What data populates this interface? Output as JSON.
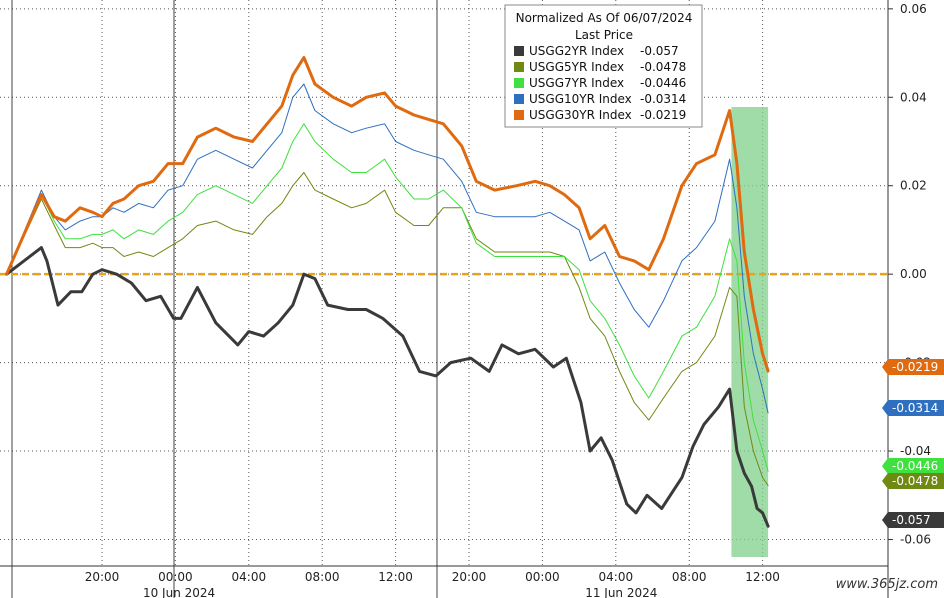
{
  "chart_data": {
    "type": "line",
    "legend": {
      "title": "Normalized As Of 06/07/2024",
      "subtitle": "Last Price",
      "placement": "top-center"
    },
    "ylim": [
      -0.066,
      0.062
    ],
    "y_ticks": [
      "0.06",
      "0.04",
      "0.02",
      "0.00",
      "-0.02",
      "-0.04",
      "-0.06"
    ],
    "y_tick_values": [
      0.06,
      0.04,
      0.02,
      0.0,
      -0.02,
      -0.04,
      -0.06
    ],
    "x_ticks": [
      "20:00",
      "00:00",
      "04:00",
      "08:00",
      "12:00",
      "20:00",
      "00:00",
      "04:00",
      "08:00",
      "12:00"
    ],
    "x_tick_hours": [
      0,
      4,
      8,
      12,
      16,
      20,
      24,
      28,
      32,
      36
    ],
    "x_hour_offset_label": "x values are hours after the 20:00 tick on 9 Jun 2024",
    "dates": [
      {
        "label": "10 Jun 2024",
        "center_hour": 4.2
      },
      {
        "label": "11 Jun 2024",
        "center_hour": 28.3
      }
    ],
    "reference_line": {
      "y": 0.0,
      "color": "#e8a317",
      "style": "dashed"
    },
    "highlight_band": {
      "x_start": 34.3,
      "x_end": 36.3,
      "color": "#7fd08a"
    },
    "series": [
      {
        "name": "USGG2YR Index",
        "last": "-0.057",
        "color": "#3a3a3a",
        "width": 3,
        "x": [
          -5.2,
          -3.3,
          -3.0,
          -2.4,
          -1.7,
          -1.1,
          -0.5,
          0.0,
          0.8,
          1.6,
          2.4,
          3.2,
          3.9,
          4.3,
          5.2,
          6.2,
          7.4,
          8.0,
          8.8,
          9.6,
          10.4,
          11.0,
          11.6,
          12.3,
          13.4,
          14.4,
          15.3,
          16.4,
          17.3,
          18.2,
          19.0,
          20.1,
          21.1,
          21.8,
          22.7,
          23.6,
          24.6,
          25.3,
          26.1,
          26.6,
          27.2,
          27.8,
          28.6,
          29.1,
          29.7,
          30.5,
          31.6,
          32.2,
          32.8,
          33.6,
          34.2,
          34.6,
          35.0,
          35.4,
          35.7,
          36.0,
          36.3
        ],
        "y": [
          0.0,
          0.006,
          0.003,
          -0.007,
          -0.004,
          -0.004,
          0.0,
          0.001,
          0.0,
          -0.002,
          -0.006,
          -0.005,
          -0.01,
          -0.01,
          -0.003,
          -0.011,
          -0.016,
          -0.013,
          -0.014,
          -0.011,
          -0.007,
          0.0,
          -0.001,
          -0.007,
          -0.008,
          -0.008,
          -0.01,
          -0.014,
          -0.022,
          -0.023,
          -0.02,
          -0.019,
          -0.022,
          -0.016,
          -0.018,
          -0.017,
          -0.021,
          -0.019,
          -0.029,
          -0.04,
          -0.037,
          -0.042,
          -0.052,
          -0.054,
          -0.05,
          -0.053,
          -0.046,
          -0.039,
          -0.034,
          -0.03,
          -0.026,
          -0.04,
          -0.045,
          -0.048,
          -0.053,
          -0.054,
          -0.057
        ]
      },
      {
        "name": "USGG5YR Index",
        "last": "-0.0478",
        "color": "#6f8a12",
        "width": 1,
        "x": [
          -5.2,
          -3.3,
          -2.6,
          -2.0,
          -1.2,
          -0.5,
          0.0,
          0.6,
          1.2,
          2.0,
          2.8,
          3.6,
          4.4,
          5.2,
          6.2,
          7.2,
          8.2,
          9.0,
          9.8,
          10.4,
          11.0,
          11.6,
          12.6,
          13.6,
          14.4,
          15.4,
          16.0,
          17.0,
          17.8,
          18.6,
          19.6,
          20.4,
          21.4,
          22.6,
          23.6,
          24.4,
          25.2,
          26.0,
          26.6,
          27.4,
          28.2,
          29.0,
          29.8,
          30.6,
          31.6,
          32.4,
          33.4,
          34.2,
          34.6,
          35.0,
          35.5,
          36.0,
          36.3
        ],
        "y": [
          0.0,
          0.017,
          0.011,
          0.006,
          0.006,
          0.007,
          0.006,
          0.006,
          0.004,
          0.005,
          0.004,
          0.006,
          0.008,
          0.011,
          0.012,
          0.01,
          0.009,
          0.013,
          0.016,
          0.02,
          0.023,
          0.019,
          0.017,
          0.015,
          0.016,
          0.019,
          0.014,
          0.011,
          0.011,
          0.015,
          0.015,
          0.008,
          0.005,
          0.005,
          0.005,
          0.005,
          0.004,
          -0.003,
          -0.01,
          -0.014,
          -0.022,
          -0.029,
          -0.033,
          -0.028,
          -0.022,
          -0.02,
          -0.014,
          -0.003,
          -0.005,
          -0.03,
          -0.04,
          -0.046,
          -0.0478
        ]
      },
      {
        "name": "USGG7YR Index",
        "last": "-0.0446",
        "color": "#3fe03f",
        "width": 1,
        "x": [
          -5.2,
          -3.3,
          -2.6,
          -2.0,
          -1.2,
          -0.5,
          0.0,
          0.6,
          1.2,
          2.0,
          2.8,
          3.6,
          4.4,
          5.2,
          6.2,
          7.2,
          8.2,
          9.0,
          9.8,
          10.4,
          11.0,
          11.6,
          12.6,
          13.6,
          14.4,
          15.4,
          16.0,
          17.0,
          17.8,
          18.6,
          19.6,
          20.4,
          21.4,
          22.6,
          23.6,
          24.4,
          25.2,
          26.0,
          26.6,
          27.4,
          28.2,
          29.0,
          29.8,
          30.6,
          31.6,
          32.4,
          33.4,
          34.2,
          34.6,
          35.0,
          35.5,
          36.0,
          36.3
        ],
        "y": [
          0.0,
          0.018,
          0.012,
          0.008,
          0.008,
          0.009,
          0.009,
          0.01,
          0.008,
          0.01,
          0.009,
          0.012,
          0.014,
          0.018,
          0.02,
          0.018,
          0.016,
          0.02,
          0.024,
          0.03,
          0.034,
          0.03,
          0.026,
          0.023,
          0.023,
          0.026,
          0.022,
          0.017,
          0.017,
          0.019,
          0.015,
          0.007,
          0.004,
          0.004,
          0.004,
          0.004,
          0.004,
          0.001,
          -0.006,
          -0.01,
          -0.016,
          -0.023,
          -0.028,
          -0.022,
          -0.014,
          -0.012,
          -0.005,
          0.008,
          0.003,
          -0.02,
          -0.033,
          -0.04,
          -0.0446
        ]
      },
      {
        "name": "USGG10YR Index",
        "last": "-0.0314",
        "color": "#2f6fc0",
        "width": 1,
        "x": [
          -5.2,
          -3.3,
          -2.6,
          -2.0,
          -1.2,
          -0.5,
          0.0,
          0.6,
          1.2,
          2.0,
          2.8,
          3.6,
          4.4,
          5.2,
          6.2,
          7.2,
          8.2,
          9.0,
          9.8,
          10.4,
          11.0,
          11.6,
          12.6,
          13.6,
          14.4,
          15.4,
          16.0,
          17.0,
          17.8,
          18.6,
          19.6,
          20.4,
          21.4,
          22.6,
          23.6,
          24.4,
          25.2,
          26.0,
          26.6,
          27.4,
          28.2,
          29.0,
          29.8,
          30.6,
          31.6,
          32.4,
          33.4,
          34.2,
          34.6,
          35.0,
          35.5,
          36.0,
          36.3
        ],
        "y": [
          0.0,
          0.019,
          0.013,
          0.01,
          0.012,
          0.013,
          0.013,
          0.015,
          0.014,
          0.016,
          0.015,
          0.019,
          0.02,
          0.026,
          0.028,
          0.026,
          0.024,
          0.028,
          0.032,
          0.04,
          0.043,
          0.037,
          0.034,
          0.032,
          0.033,
          0.034,
          0.03,
          0.028,
          0.027,
          0.026,
          0.021,
          0.014,
          0.013,
          0.013,
          0.013,
          0.014,
          0.012,
          0.01,
          0.003,
          0.005,
          -0.002,
          -0.008,
          -0.012,
          -0.006,
          0.003,
          0.006,
          0.012,
          0.026,
          0.015,
          -0.005,
          -0.018,
          -0.026,
          -0.0314
        ]
      },
      {
        "name": "USGG30YR Index",
        "last": "-0.0219",
        "color": "#e06a10",
        "width": 3,
        "x": [
          -5.2,
          -3.3,
          -2.6,
          -2.0,
          -1.2,
          -0.5,
          0.0,
          0.6,
          1.2,
          2.0,
          2.8,
          3.6,
          4.4,
          5.2,
          6.2,
          7.2,
          8.2,
          9.0,
          9.8,
          10.4,
          11.0,
          11.6,
          12.6,
          13.6,
          14.4,
          15.4,
          16.0,
          17.0,
          17.8,
          18.6,
          19.6,
          20.4,
          21.4,
          22.6,
          23.6,
          24.4,
          25.2,
          26.0,
          26.6,
          27.4,
          28.2,
          29.0,
          29.8,
          30.6,
          31.6,
          32.4,
          33.4,
          34.2,
          34.6,
          35.0,
          35.5,
          36.0,
          36.3
        ],
        "y": [
          0.0,
          0.018,
          0.013,
          0.012,
          0.015,
          0.014,
          0.013,
          0.016,
          0.017,
          0.02,
          0.021,
          0.025,
          0.025,
          0.031,
          0.033,
          0.031,
          0.03,
          0.034,
          0.038,
          0.045,
          0.049,
          0.043,
          0.04,
          0.038,
          0.04,
          0.041,
          0.038,
          0.036,
          0.035,
          0.034,
          0.029,
          0.021,
          0.019,
          0.02,
          0.021,
          0.02,
          0.018,
          0.015,
          0.008,
          0.011,
          0.004,
          0.003,
          0.001,
          0.008,
          0.02,
          0.025,
          0.027,
          0.037,
          0.025,
          0.005,
          -0.008,
          -0.018,
          -0.0219
        ]
      }
    ]
  },
  "watermark": "www.365jz.com"
}
